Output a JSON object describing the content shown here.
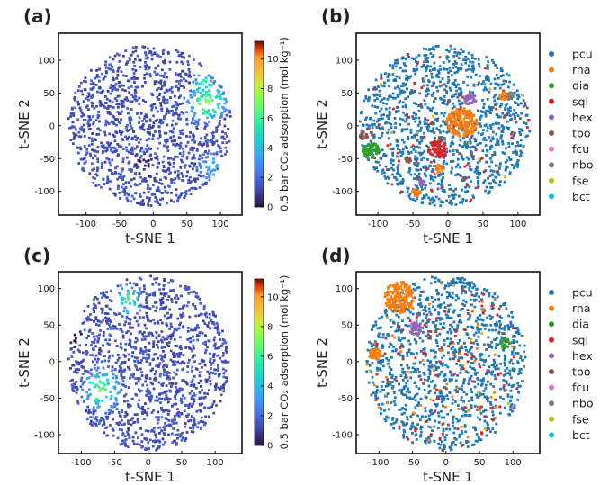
{
  "chart_data": [
    {
      "panel": "(a)",
      "type": "scatter",
      "color_by": "value",
      "xlabel": "t-SNE 1",
      "ylabel": "t-SNE 2",
      "xlim": [
        -141,
        132
      ],
      "ylim": [
        -136,
        141
      ],
      "xticks": [
        -100,
        -50,
        0,
        50,
        100
      ],
      "yticks": [
        -100,
        -50,
        0,
        50,
        100
      ],
      "colorbar": {
        "label": "0.5 bar CO₂ adsorption (mol kg⁻¹)",
        "ticks": [
          0,
          2,
          4,
          6,
          8,
          10
        ],
        "range": [
          0,
          11.2
        ],
        "colormap": "turbo"
      },
      "extent": {
        "center": [
          -5,
          0
        ],
        "radius": 122,
        "base_value": 1.4
      },
      "clusters": [
        {
          "center": [
            80,
            35
          ],
          "radius": 38,
          "value": 6
        },
        {
          "center": [
            75,
            65
          ],
          "radius": 20,
          "value": 5
        },
        {
          "center": [
            85,
            -60
          ],
          "radius": 25,
          "value": 3.5
        },
        {
          "center": [
            -10,
            -60
          ],
          "radius": 22,
          "value": 0.4
        }
      ]
    },
    {
      "panel": "(b)",
      "type": "scatter",
      "color_by": "category",
      "xlabel": "t-SNE 1",
      "ylabel": "t-SNE 2",
      "xlim": [
        -131,
        131
      ],
      "ylim": [
        -136,
        141
      ],
      "xticks": [
        -100,
        -50,
        0,
        50,
        100
      ],
      "yticks": [
        -100,
        -50,
        0,
        50,
        100
      ],
      "legend": [
        {
          "label": "pcu",
          "color": "#1f77b4"
        },
        {
          "label": "rna",
          "color": "#ff7f0e"
        },
        {
          "label": "dia",
          "color": "#2ca02c"
        },
        {
          "label": "sql",
          "color": "#d62728"
        },
        {
          "label": "hex",
          "color": "#9467bd"
        },
        {
          "label": "tbo",
          "color": "#8c564b"
        },
        {
          "label": "fcu",
          "color": "#e377c2"
        },
        {
          "label": "nbo",
          "color": "#7f7f7f"
        },
        {
          "label": "fse",
          "color": "#bcbd22"
        },
        {
          "label": "bct",
          "color": "#17becf"
        }
      ],
      "legend_position": "right",
      "extent": {
        "center": [
          -5,
          0
        ],
        "radius": 122,
        "category": "pcu"
      },
      "clusters": [
        {
          "category": "rna",
          "center": [
            20,
            5
          ],
          "radius": 22
        },
        {
          "category": "rna",
          "center": [
            80,
            45
          ],
          "radius": 6
        },
        {
          "category": "rna",
          "center": [
            -45,
            -102
          ],
          "radius": 6
        },
        {
          "category": "rna",
          "center": [
            -13,
            -65
          ],
          "radius": 6
        },
        {
          "category": "dia",
          "center": [
            -110,
            -38
          ],
          "radius": 12
        },
        {
          "category": "tbo",
          "center": [
            -120,
            -15
          ],
          "radius": 6
        },
        {
          "category": "tbo",
          "center": [
            -57,
            -52
          ],
          "radius": 4
        },
        {
          "category": "sql",
          "center": [
            -15,
            -35
          ],
          "radius": 14
        },
        {
          "category": "hex",
          "center": [
            32,
            40
          ],
          "radius": 9
        },
        {
          "category": "hex",
          "center": [
            -37,
            -87
          ],
          "radius": 4
        },
        {
          "category": "nbo",
          "center": [
            90,
            47
          ],
          "radius": 4
        }
      ],
      "sparse": {
        "sql": 0.05,
        "fse": 0.015
      }
    },
    {
      "panel": "(c)",
      "type": "scatter",
      "color_by": "value",
      "xlabel": "t-SNE 1",
      "ylabel": "t-SNE 2",
      "xlim": [
        -134,
        140
      ],
      "ylim": [
        -126,
        123
      ],
      "xticks": [
        -100,
        -50,
        0,
        50,
        100
      ],
      "yticks": [
        -100,
        -50,
        0,
        50,
        100
      ],
      "colorbar": {
        "label": "0.5 bar CO₂ adsorption (mol kg⁻¹)",
        "ticks": [
          0,
          2,
          4,
          6,
          8,
          10
        ],
        "range": [
          0,
          11.2
        ],
        "colormap": "turbo"
      },
      "extent": {
        "center": [
          0,
          -2
        ],
        "radius": 120,
        "base_value": 1.4
      },
      "clusters": [
        {
          "category": "",
          "center": [
            -70,
            -40
          ],
          "radius": 35,
          "value": 5.5
        },
        {
          "center": [
            -30,
            85
          ],
          "radius": 25,
          "value": 5
        },
        {
          "center": [
            -110,
            35
          ],
          "radius": 20,
          "value": 0.4
        }
      ]
    },
    {
      "panel": "(d)",
      "type": "scatter",
      "color_by": "category",
      "xlabel": "t-SNE 1",
      "ylabel": "t-SNE 2",
      "xlim": [
        -134,
        140
      ],
      "ylim": [
        -126,
        123
      ],
      "xticks": [
        -100,
        -50,
        0,
        50,
        100
      ],
      "yticks": [
        -100,
        -50,
        0,
        50,
        100
      ],
      "legend": [
        {
          "label": "pcu",
          "color": "#1f77b4"
        },
        {
          "label": "rna",
          "color": "#ff7f0e"
        },
        {
          "label": "dia",
          "color": "#2ca02c"
        },
        {
          "label": "sql",
          "color": "#d62728"
        },
        {
          "label": "hex",
          "color": "#9467bd"
        },
        {
          "label": "tbo",
          "color": "#8c564b"
        },
        {
          "label": "fcu",
          "color": "#e377c2"
        },
        {
          "label": "nbo",
          "color": "#7f7f7f"
        },
        {
          "label": "fse",
          "color": "#bcbd22"
        },
        {
          "label": "bct",
          "color": "#17becf"
        }
      ],
      "legend_position": "right",
      "extent": {
        "center": [
          0,
          -2
        ],
        "radius": 120,
        "category": "pcu"
      },
      "clusters": [
        {
          "category": "rna",
          "center": [
            -70,
            88
          ],
          "radius": 22
        },
        {
          "category": "hex",
          "center": [
            -45,
            45
          ],
          "radius": 10
        },
        {
          "category": "dia",
          "center": [
            88,
            25
          ],
          "radius": 7
        },
        {
          "category": "rna",
          "center": [
            -105,
            10
          ],
          "radius": 10
        }
      ],
      "sparse": {
        "sql": 0.08,
        "rna": 0.03,
        "fse": 0.01
      }
    }
  ]
}
